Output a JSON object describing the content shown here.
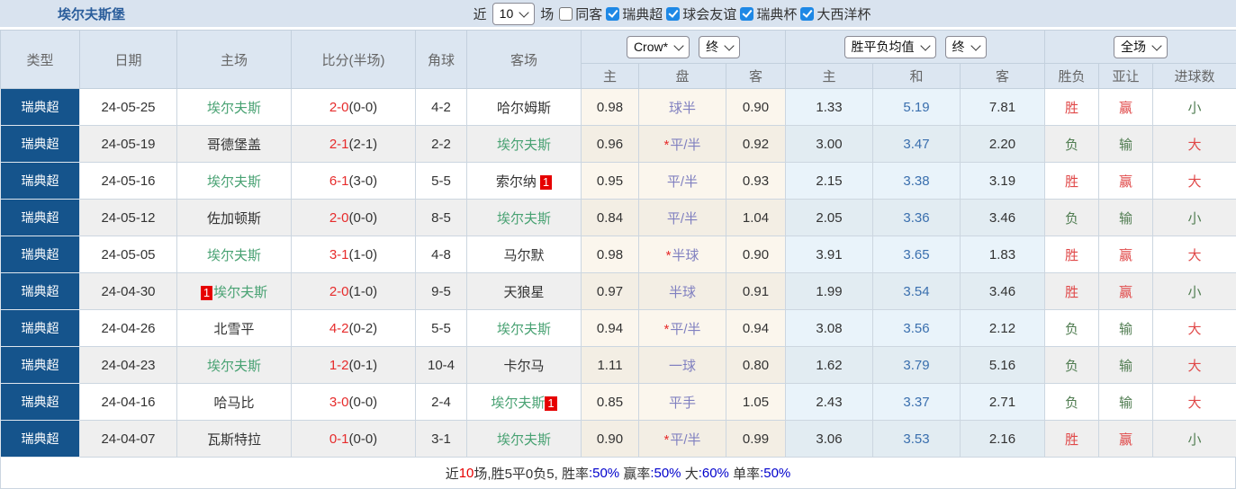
{
  "title": "埃尔夫斯堡",
  "colors": {
    "navy_league_cell": "#15548c",
    "header_bg": "#dce6f1",
    "topbar_bg": "#d9e3ef",
    "odds_bg": "#fbf6ed",
    "euro_bg": "#e9f3fa",
    "win_red": "#e04848",
    "lose_green": "#517d52",
    "team_green": "#49a273",
    "score_red": "#e62b2b",
    "draw_blue": "#3a6fae",
    "footer_blue": "#0000cc",
    "checkbox_blue": "#1e88e5",
    "badge_red": "#e60000"
  },
  "filters": {
    "recent_label": "近",
    "recent_value": "10",
    "matches_label": "场",
    "checkboxes": [
      {
        "label": "同客",
        "checked": false
      },
      {
        "label": "瑞典超",
        "checked": true
      },
      {
        "label": "球会友谊",
        "checked": true
      },
      {
        "label": "瑞典杯",
        "checked": true
      },
      {
        "label": "大西洋杯",
        "checked": true
      }
    ]
  },
  "table": {
    "headers": {
      "type": "类型",
      "date": "日期",
      "home": "主场",
      "score": "比分(半场)",
      "corner": "角球",
      "away": "客场"
    },
    "selects": {
      "odds_company": "Crow*",
      "odds_time": "终",
      "europe_company": "胜平负均值",
      "europe_time": "终",
      "scope": "全场"
    },
    "subheaders": [
      "主",
      "盘",
      "客",
      "主",
      "和",
      "客",
      "胜负",
      "亚让",
      "进球数"
    ],
    "rows": [
      {
        "league": "瑞典超",
        "date": "24-05-25",
        "home": {
          "name": "埃尔夫斯",
          "green": true,
          "badge": null,
          "badge_side": null
        },
        "score": "2-0",
        "half": "(0-0)",
        "corner": "4-2",
        "away": {
          "name": "哈尔姆斯",
          "green": false,
          "badge": null,
          "badge_side": null
        },
        "odds_home": "0.98",
        "handicap": "球半",
        "handicap_star": false,
        "odds_away": "0.90",
        "e_home": "1.33",
        "e_draw": "5.19",
        "e_away": "7.81",
        "result": "胜",
        "result_color": "red",
        "asia": "赢",
        "asia_color": "red",
        "goals": "小",
        "goals_color": "green"
      },
      {
        "league": "瑞典超",
        "date": "24-05-19",
        "home": {
          "name": "哥德堡盖",
          "green": false,
          "badge": null,
          "badge_side": null
        },
        "score": "2-1",
        "half": "(2-1)",
        "corner": "2-2",
        "away": {
          "name": "埃尔夫斯",
          "green": true,
          "badge": null,
          "badge_side": null
        },
        "odds_home": "0.96",
        "handicap": "平/半",
        "handicap_star": true,
        "odds_away": "0.92",
        "e_home": "3.00",
        "e_draw": "3.47",
        "e_away": "2.20",
        "result": "负",
        "result_color": "green",
        "asia": "输",
        "asia_color": "green",
        "goals": "大",
        "goals_color": "red"
      },
      {
        "league": "瑞典超",
        "date": "24-05-16",
        "home": {
          "name": "埃尔夫斯",
          "green": true,
          "badge": null,
          "badge_side": null
        },
        "score": "6-1",
        "half": "(3-0)",
        "corner": "5-5",
        "away": {
          "name": "索尔纳",
          "green": false,
          "badge": "1",
          "badge_side": "right"
        },
        "odds_home": "0.95",
        "handicap": "平/半",
        "handicap_star": false,
        "odds_away": "0.93",
        "e_home": "2.15",
        "e_draw": "3.38",
        "e_away": "3.19",
        "result": "胜",
        "result_color": "red",
        "asia": "赢",
        "asia_color": "red",
        "goals": "大",
        "goals_color": "red"
      },
      {
        "league": "瑞典超",
        "date": "24-05-12",
        "home": {
          "name": "佐加顿斯",
          "green": false,
          "badge": null,
          "badge_side": null
        },
        "score": "2-0",
        "half": "(0-0)",
        "corner": "8-5",
        "away": {
          "name": "埃尔夫斯",
          "green": true,
          "badge": null,
          "badge_side": null
        },
        "odds_home": "0.84",
        "handicap": "平/半",
        "handicap_star": false,
        "odds_away": "1.04",
        "e_home": "2.05",
        "e_draw": "3.36",
        "e_away": "3.46",
        "result": "负",
        "result_color": "green",
        "asia": "输",
        "asia_color": "green",
        "goals": "小",
        "goals_color": "green"
      },
      {
        "league": "瑞典超",
        "date": "24-05-05",
        "home": {
          "name": "埃尔夫斯",
          "green": true,
          "badge": null,
          "badge_side": null
        },
        "score": "3-1",
        "half": "(1-0)",
        "corner": "4-8",
        "away": {
          "name": "马尔默",
          "green": false,
          "badge": null,
          "badge_side": null
        },
        "odds_home": "0.98",
        "handicap": "半球",
        "handicap_star": true,
        "odds_away": "0.90",
        "e_home": "3.91",
        "e_draw": "3.65",
        "e_away": "1.83",
        "result": "胜",
        "result_color": "red",
        "asia": "赢",
        "asia_color": "red",
        "goals": "大",
        "goals_color": "red"
      },
      {
        "league": "瑞典超",
        "date": "24-04-30",
        "home": {
          "name": "埃尔夫斯",
          "green": true,
          "badge": "1",
          "badge_side": "left"
        },
        "score": "2-0",
        "half": "(1-0)",
        "corner": "9-5",
        "away": {
          "name": "天狼星",
          "green": false,
          "badge": null,
          "badge_side": null
        },
        "odds_home": "0.97",
        "handicap": "半球",
        "handicap_star": false,
        "odds_away": "0.91",
        "e_home": "1.99",
        "e_draw": "3.54",
        "e_away": "3.46",
        "result": "胜",
        "result_color": "red",
        "asia": "赢",
        "asia_color": "red",
        "goals": "小",
        "goals_color": "green"
      },
      {
        "league": "瑞典超",
        "date": "24-04-26",
        "home": {
          "name": "北雪平",
          "green": false,
          "badge": null,
          "badge_side": null
        },
        "score": "4-2",
        "half": "(0-2)",
        "corner": "5-5",
        "away": {
          "name": "埃尔夫斯",
          "green": true,
          "badge": null,
          "badge_side": null
        },
        "odds_home": "0.94",
        "handicap": "平/半",
        "handicap_star": true,
        "odds_away": "0.94",
        "e_home": "3.08",
        "e_draw": "3.56",
        "e_away": "2.12",
        "result": "负",
        "result_color": "green",
        "asia": "输",
        "asia_color": "green",
        "goals": "大",
        "goals_color": "red"
      },
      {
        "league": "瑞典超",
        "date": "24-04-23",
        "home": {
          "name": "埃尔夫斯",
          "green": true,
          "badge": null,
          "badge_side": null
        },
        "score": "1-2",
        "half": "(0-1)",
        "corner": "10-4",
        "away": {
          "name": "卡尔马",
          "green": false,
          "badge": null,
          "badge_side": null
        },
        "odds_home": "1.11",
        "handicap": "一球",
        "handicap_star": false,
        "odds_away": "0.80",
        "e_home": "1.62",
        "e_draw": "3.79",
        "e_away": "5.16",
        "result": "负",
        "result_color": "green",
        "asia": "输",
        "asia_color": "green",
        "goals": "大",
        "goals_color": "red"
      },
      {
        "league": "瑞典超",
        "date": "24-04-16",
        "home": {
          "name": "哈马比",
          "green": false,
          "badge": null,
          "badge_side": null
        },
        "score": "3-0",
        "half": "(0-0)",
        "corner": "2-4",
        "away": {
          "name": "埃尔夫斯",
          "green": true,
          "badge": "1",
          "badge_side": "right_tight"
        },
        "odds_home": "0.85",
        "handicap": "平手",
        "handicap_star": false,
        "odds_away": "1.05",
        "e_home": "2.43",
        "e_draw": "3.37",
        "e_away": "2.71",
        "result": "负",
        "result_color": "green",
        "asia": "输",
        "asia_color": "green",
        "goals": "大",
        "goals_color": "red"
      },
      {
        "league": "瑞典超",
        "date": "24-04-07",
        "home": {
          "name": "瓦斯特拉",
          "green": false,
          "badge": null,
          "badge_side": null
        },
        "score": "0-1",
        "half": "(0-0)",
        "corner": "3-1",
        "away": {
          "name": "埃尔夫斯",
          "green": true,
          "badge": null,
          "badge_side": null
        },
        "odds_home": "0.90",
        "handicap": "平/半",
        "handicap_star": true,
        "odds_away": "0.99",
        "e_home": "3.06",
        "e_draw": "3.53",
        "e_away": "2.16",
        "result": "胜",
        "result_color": "red",
        "asia": "赢",
        "asia_color": "red",
        "goals": "小",
        "goals_color": "green"
      }
    ]
  },
  "footer": {
    "segments": [
      {
        "text": "近",
        "color": "dark"
      },
      {
        "text": "10",
        "color": "red"
      },
      {
        "text": "场,胜5平0负5, ",
        "color": "dark"
      },
      {
        "text": "胜率",
        "color": "dark"
      },
      {
        "text": ":50%",
        "color": "blue"
      },
      {
        "text": " 赢率",
        "color": "dark"
      },
      {
        "text": ":50%",
        "color": "blue"
      },
      {
        "text": " 大",
        "color": "dark"
      },
      {
        "text": ":60%",
        "color": "blue"
      },
      {
        "text": " 单率",
        "color": "dark"
      },
      {
        "text": ":50%",
        "color": "blue"
      }
    ]
  }
}
